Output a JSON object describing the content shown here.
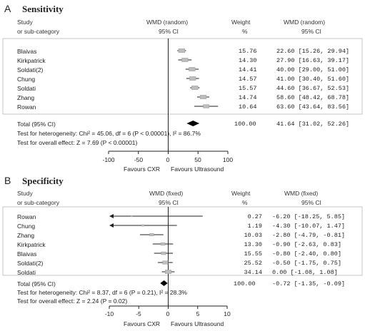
{
  "panels": [
    {
      "letter": "A",
      "title": "Sensitivity",
      "header": {
        "study": "Study",
        "subcategory": "or sub-category",
        "effect_label": "WMD (random)",
        "ci_label": "95% CI",
        "weight_label": "Weight",
        "weight_unit": "%",
        "effect_label_right": "WMD (random)",
        "ci_label_right": "95% CI"
      },
      "rows": [
        {
          "study": "Blaivas",
          "weight": "15.76",
          "ci_text": "22.60 [15.26, 29.94]"
        },
        {
          "study": "Kirkpatrick",
          "weight": "14.30",
          "ci_text": "27.90 [16.63, 39.17]"
        },
        {
          "study": "Soldati(2)",
          "weight": "14.41",
          "ci_text": "40.00 [29.00, 51.00]"
        },
        {
          "study": "Chung",
          "weight": "14.57",
          "ci_text": "41.00 [30.40, 51.60]"
        },
        {
          "study": "Soldati",
          "weight": "15.57",
          "ci_text": "44.60 [36.67, 52.53]"
        },
        {
          "study": "Zhang",
          "weight": "14.74",
          "ci_text": "58.60 [48.42, 68.78]"
        },
        {
          "study": "Rowan",
          "weight": "10.64",
          "ci_text": "63.60 [43.64, 83.56]"
        }
      ],
      "total": {
        "label": "Total (95% CI)",
        "weight": "100.00",
        "ci_text": "41.64 [31.02, 52.26]"
      },
      "heterogeneity": "Test for heterogeneity: Chi² = 45.06, df = 6 (P < 0.00001), I² = 86.7%",
      "overall": "Test for overall effect: Z = 7.69 (P < 0.00001)",
      "ticks": [
        "-100",
        "-50",
        "0",
        "50",
        "100"
      ],
      "favours_left": "Favours CXR",
      "favours_right": "Favours Ultrasound"
    },
    {
      "letter": "B",
      "title": "Specificity",
      "header": {
        "study": "Study",
        "subcategory": "or sub-category",
        "effect_label": "WMD (fixed)",
        "ci_label": "95% CI",
        "weight_label": "Weight",
        "weight_unit": "%",
        "effect_label_right": "WMD (fixed)",
        "ci_label_right": "95% CI"
      },
      "rows": [
        {
          "study": "Rowan",
          "weight": "0.27",
          "ci_text": "-6.20 [-18.25, 5.85]"
        },
        {
          "study": "Chung",
          "weight": "1.19",
          "ci_text": "-4.30 [-10.07, 1.47]"
        },
        {
          "study": "Zhang",
          "weight": "10.03",
          "ci_text": "-2.80 [-4.79, -0.81]"
        },
        {
          "study": "Kirkpatrick",
          "weight": "13.30",
          "ci_text": "-0.90 [-2.63, 0.83]"
        },
        {
          "study": "Blaivas",
          "weight": "15.55",
          "ci_text": "-0.80 [-2.40, 0.80]"
        },
        {
          "study": "Soldati(2)",
          "weight": "25.52",
          "ci_text": "-0.50 [-1.75, 0.75]"
        },
        {
          "study": "Soldati",
          "weight": "34.14",
          "ci_text": "0.00 [-1.08, 1.08]"
        }
      ],
      "total": {
        "label": "Total (95% CI)",
        "weight": "100.00",
        "ci_text": "-0.72 [-1.35, -0.09]"
      },
      "heterogeneity": "Test for heterogeneity: Chi² = 8.37, df = 6 (P = 0.21), I² = 28.3%",
      "overall": "Test for overall effect: Z = 2.24 (P = 0.02)",
      "ticks": [
        "-10",
        "-5",
        "0",
        "5",
        "10"
      ],
      "favours_left": "Favours CXR",
      "favours_right": "Favours Ultrasound"
    }
  ],
  "chart_data": [
    {
      "type": "forest",
      "title": "Sensitivity",
      "xlim": [
        -100,
        100
      ],
      "xticks": [
        -100,
        -50,
        0,
        50,
        100
      ],
      "studies": [
        {
          "name": "Blaivas",
          "estimate": 22.6,
          "lower": 15.26,
          "upper": 29.94,
          "weight": 15.76
        },
        {
          "name": "Kirkpatrick",
          "estimate": 27.9,
          "lower": 16.63,
          "upper": 39.17,
          "weight": 14.3
        },
        {
          "name": "Soldati(2)",
          "estimate": 40.0,
          "lower": 29.0,
          "upper": 51.0,
          "weight": 14.41
        },
        {
          "name": "Chung",
          "estimate": 41.0,
          "lower": 30.4,
          "upper": 51.6,
          "weight": 14.57
        },
        {
          "name": "Soldati",
          "estimate": 44.6,
          "lower": 36.67,
          "upper": 52.53,
          "weight": 15.57
        },
        {
          "name": "Zhang",
          "estimate": 58.6,
          "lower": 48.42,
          "upper": 68.78,
          "weight": 14.74
        },
        {
          "name": "Rowan",
          "estimate": 63.6,
          "lower": 43.64,
          "upper": 83.56,
          "weight": 10.64
        }
      ],
      "total": {
        "estimate": 41.64,
        "lower": 31.02,
        "upper": 52.26
      }
    },
    {
      "type": "forest",
      "title": "Specificity",
      "xlim": [
        -10,
        10
      ],
      "xticks": [
        -10,
        -5,
        0,
        5,
        10
      ],
      "studies": [
        {
          "name": "Rowan",
          "estimate": -6.2,
          "lower": -18.25,
          "upper": 5.85,
          "weight": 0.27
        },
        {
          "name": "Chung",
          "estimate": -4.3,
          "lower": -10.07,
          "upper": 1.47,
          "weight": 1.19
        },
        {
          "name": "Zhang",
          "estimate": -2.8,
          "lower": -4.79,
          "upper": -0.81,
          "weight": 10.03
        },
        {
          "name": "Kirkpatrick",
          "estimate": -0.9,
          "lower": -2.63,
          "upper": 0.83,
          "weight": 13.3
        },
        {
          "name": "Blaivas",
          "estimate": -0.8,
          "lower": -2.4,
          "upper": 0.8,
          "weight": 15.55
        },
        {
          "name": "Soldati(2)",
          "estimate": -0.5,
          "lower": -1.75,
          "upper": 0.75,
          "weight": 25.52
        },
        {
          "name": "Soldati",
          "estimate": 0.0,
          "lower": -1.08,
          "upper": 1.08,
          "weight": 34.14
        }
      ],
      "total": {
        "estimate": -0.72,
        "lower": -1.35,
        "upper": -0.09
      }
    }
  ]
}
